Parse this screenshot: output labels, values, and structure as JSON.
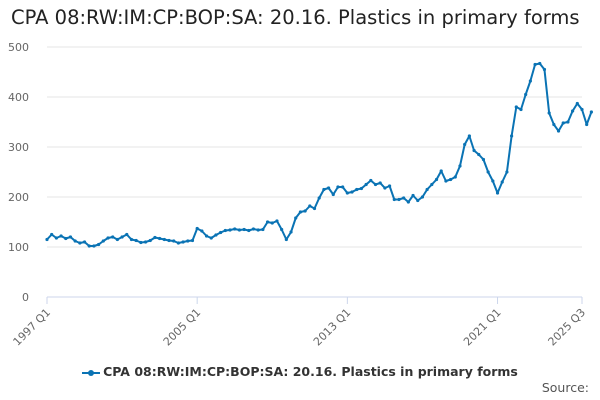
{
  "title": "CPA 08:RW:IM:CP:BOP:SA: 20.16. Plastics in primary forms",
  "source_label": "Source:",
  "colors": {
    "series": "#0a73b4",
    "grid": "#e6e6e6",
    "axis": "#ccd6eb"
  },
  "chart_data": {
    "type": "line",
    "title": "CPA 08:RW:IM:CP:BOP:SA: 20.16. Plastics in primary forms",
    "xlabel": "",
    "ylabel": "",
    "x_range": [
      "1997 Q1",
      "2025 Q3"
    ],
    "ylim": [
      0,
      500
    ],
    "y_ticks": [
      0,
      100,
      200,
      300,
      400,
      500
    ],
    "x_tick_labels": [
      "1997 Q1",
      "2005 Q1",
      "2013 Q1",
      "2021 Q1",
      "2025 Q3"
    ],
    "grid": true,
    "legend_position": "bottom-center",
    "series": [
      {
        "name": "CPA 08:RW:IM:CP:BOP:SA: 20.16. Plastics in primary forms",
        "start": "1997 Q1",
        "frequency": "quarterly",
        "values": [
          115,
          125,
          118,
          122,
          117,
          120,
          112,
          108,
          110,
          102,
          102,
          105,
          112,
          118,
          120,
          115,
          120,
          125,
          115,
          113,
          109,
          110,
          113,
          119,
          117,
          115,
          113,
          112,
          108,
          110,
          112,
          113,
          137,
          132,
          122,
          118,
          124,
          129,
          133,
          134,
          136,
          134,
          135,
          133,
          136,
          134,
          135,
          150,
          148,
          152,
          135,
          115,
          130,
          158,
          170,
          172,
          182,
          177,
          198,
          215,
          218,
          205,
          220,
          220,
          208,
          210,
          215,
          217,
          225,
          233,
          225,
          228,
          218,
          222,
          195,
          195,
          198,
          190,
          203,
          193,
          200,
          215,
          225,
          235,
          252,
          232,
          235,
          240,
          262,
          305,
          322,
          293,
          285,
          275,
          250,
          232,
          208,
          230,
          250,
          322,
          380,
          375,
          405,
          432,
          465,
          467,
          455,
          368,
          345,
          332,
          348,
          350,
          372,
          387,
          375,
          345,
          370
        ]
      }
    ]
  }
}
